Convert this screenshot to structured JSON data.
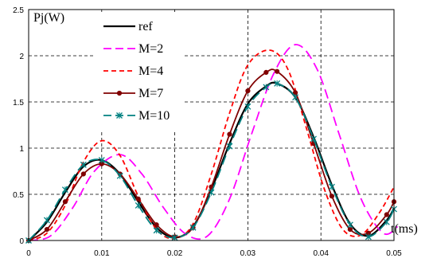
{
  "chart_data": {
    "type": "line",
    "ylabel": "Pj(W)",
    "xlabel": "t(ms)",
    "xlim": [
      0,
      0.05
    ],
    "ylim": [
      0,
      2.5
    ],
    "xticks": [
      "0",
      "0.01",
      "0.02",
      "0.03",
      "0.04",
      "0.05"
    ],
    "yticks": [
      "0",
      "0.5",
      "1",
      "1.5",
      "2",
      "2.5"
    ],
    "grid": true,
    "legend_position": "top-left",
    "x": [
      0,
      0.005,
      0.01,
      0.015,
      0.02,
      0.025,
      0.03,
      0.035,
      0.04,
      0.045,
      0.05
    ],
    "series": [
      {
        "name": "ref",
        "color": "#000000",
        "style": "solid",
        "marker": "none",
        "x": [
          0,
          0.0025,
          0.005,
          0.0075,
          0.01,
          0.0125,
          0.015,
          0.0175,
          0.02,
          0.0225,
          0.025,
          0.0275,
          0.03,
          0.0325,
          0.034,
          0.0365,
          0.039,
          0.0415,
          0.044,
          0.0465,
          0.049,
          0.05
        ],
        "values": [
          0,
          0.2,
          0.52,
          0.8,
          0.87,
          0.72,
          0.42,
          0.14,
          0.03,
          0.15,
          0.55,
          1.05,
          1.48,
          1.67,
          1.7,
          1.55,
          1.12,
          0.6,
          0.18,
          0.05,
          0.22,
          0.35
        ]
      },
      {
        "name": "M=2",
        "color": "#ff00ff",
        "style": "longdash",
        "marker": "none",
        "x": [
          0,
          0.003,
          0.006,
          0.009,
          0.0125,
          0.0155,
          0.0185,
          0.0215,
          0.0245,
          0.0275,
          0.0305,
          0.0335,
          0.0365,
          0.0395,
          0.0425,
          0.0455,
          0.0485,
          0.0505
        ],
        "values": [
          0,
          0.05,
          0.35,
          0.75,
          0.93,
          0.72,
          0.35,
          0.07,
          0.05,
          0.45,
          1.15,
          1.8,
          2.12,
          1.85,
          1.15,
          0.45,
          0.08,
          0.15
        ]
      },
      {
        "name": "M=4",
        "color": "#ff0000",
        "style": "dash",
        "marker": "none",
        "x": [
          0,
          0.0025,
          0.005,
          0.0075,
          0.01,
          0.0125,
          0.015,
          0.0175,
          0.02,
          0.0225,
          0.025,
          0.0275,
          0.03,
          0.033,
          0.0355,
          0.038,
          0.0405,
          0.043,
          0.0455,
          0.048,
          0.05
        ],
        "values": [
          0,
          0.08,
          0.38,
          0.85,
          1.08,
          0.92,
          0.48,
          0.12,
          0.02,
          0.18,
          0.72,
          1.38,
          1.9,
          2.06,
          1.85,
          1.22,
          0.55,
          0.12,
          0.06,
          0.3,
          0.58
        ]
      },
      {
        "name": "M=7",
        "color": "#800000",
        "style": "solid",
        "marker": "circle",
        "x": [
          0,
          0.0025,
          0.005,
          0.0075,
          0.01,
          0.0125,
          0.015,
          0.0175,
          0.02,
          0.0225,
          0.025,
          0.0275,
          0.03,
          0.0325,
          0.034,
          0.0365,
          0.039,
          0.0415,
          0.044,
          0.0465,
          0.049,
          0.05
        ],
        "values": [
          0,
          0.12,
          0.42,
          0.72,
          0.83,
          0.72,
          0.45,
          0.17,
          0.04,
          0.14,
          0.58,
          1.15,
          1.62,
          1.82,
          1.83,
          1.6,
          1.05,
          0.48,
          0.12,
          0.08,
          0.28,
          0.42
        ]
      },
      {
        "name": "M=10",
        "color": "#008080",
        "style": "longdash",
        "marker": "x",
        "x": [
          0,
          0.0025,
          0.005,
          0.0075,
          0.01,
          0.0125,
          0.015,
          0.0175,
          0.02,
          0.0225,
          0.025,
          0.0275,
          0.03,
          0.0325,
          0.034,
          0.0365,
          0.039,
          0.0415,
          0.044,
          0.0465,
          0.049,
          0.05
        ],
        "values": [
          0,
          0.22,
          0.55,
          0.82,
          0.87,
          0.7,
          0.38,
          0.11,
          0.03,
          0.14,
          0.52,
          1.02,
          1.45,
          1.66,
          1.7,
          1.55,
          1.1,
          0.58,
          0.17,
          0.04,
          0.2,
          0.34
        ]
      }
    ]
  }
}
